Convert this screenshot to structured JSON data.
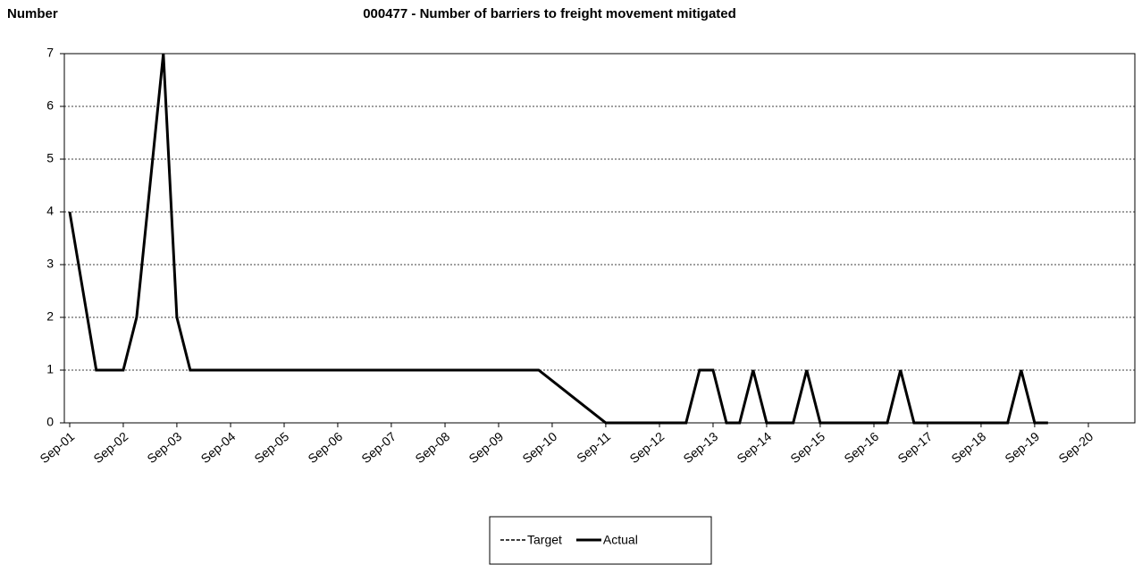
{
  "chart_data": {
    "type": "line",
    "title": "000477 - Number of barriers to freight movement mitigated",
    "y_label": "Number",
    "x": [
      "Sep-01",
      "Mar-02",
      "Sep-02",
      "Dec-02",
      "Jun-03",
      "Sep-03",
      "Dec-03",
      "Jun-10",
      "Sep-11",
      "Mar-13",
      "Jun-13",
      "Sep-13",
      "Dec-13",
      "Mar-14",
      "Jun-14",
      "Sep-14",
      "Mar-15",
      "Jun-15",
      "Sep-15",
      "Dec-16",
      "Mar-17",
      "Jun-17",
      "Mar-19",
      "Jun-19",
      "Sep-19",
      "Dec-19"
    ],
    "series": [
      {
        "name": "Target",
        "color": "#000000",
        "dashed": true,
        "values": [
          null,
          null,
          null,
          null,
          null,
          null,
          null,
          null,
          null,
          null,
          null,
          null,
          null,
          null,
          null,
          null,
          null,
          null,
          null,
          null,
          null,
          null,
          null,
          null,
          null,
          null
        ]
      },
      {
        "name": "Actual",
        "color": "#000000",
        "dashed": false,
        "values": [
          4,
          1,
          1,
          2,
          7,
          2,
          1,
          1,
          0,
          0,
          1,
          1,
          0,
          0,
          1,
          0,
          0,
          1,
          0,
          0,
          1,
          0,
          0,
          1,
          0,
          0
        ]
      }
    ],
    "xlim": [
      "Sep-01",
      "Sep-20"
    ],
    "xticks": [
      "Sep-01",
      "Sep-02",
      "Sep-03",
      "Sep-04",
      "Sep-05",
      "Sep-06",
      "Sep-07",
      "Sep-08",
      "Sep-09",
      "Sep-10",
      "Sep-11",
      "Sep-12",
      "Sep-13",
      "Sep-14",
      "Sep-15",
      "Sep-16",
      "Sep-17",
      "Sep-18",
      "Sep-19",
      "Sep-20"
    ],
    "ylim": [
      0,
      7
    ],
    "yticks": [
      0,
      1,
      2,
      3,
      4,
      5,
      6,
      7
    ],
    "grid": true,
    "legend": "bottom"
  }
}
